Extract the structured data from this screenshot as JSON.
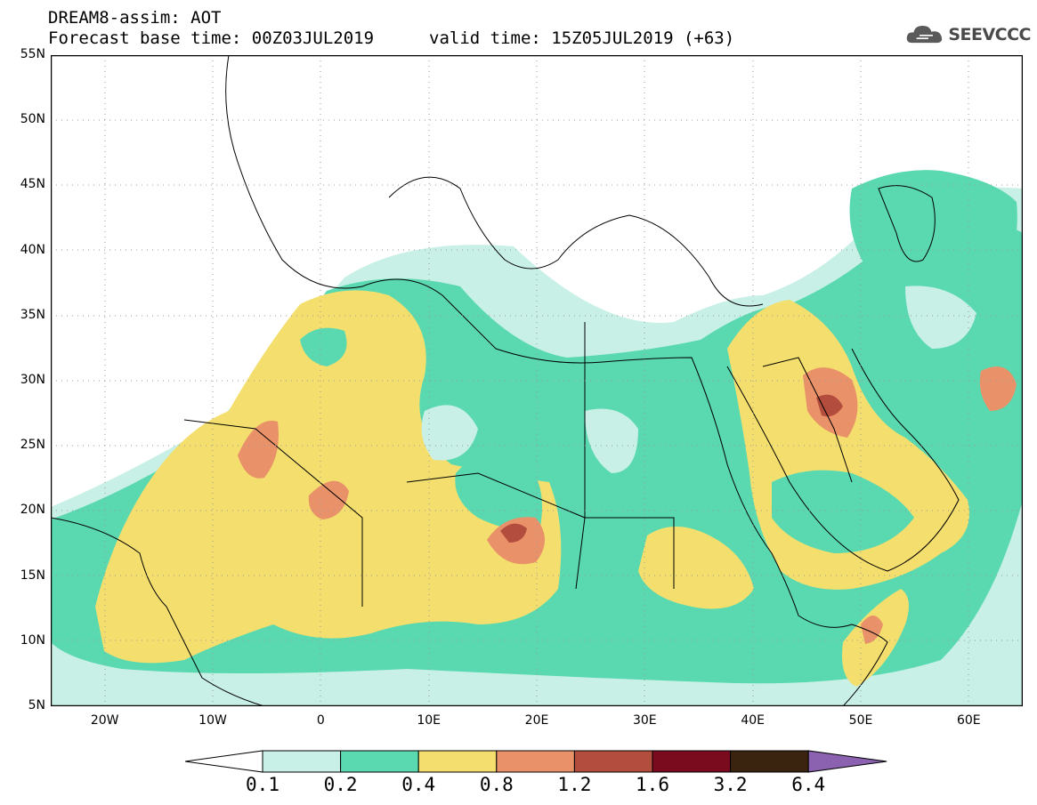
{
  "header": {
    "title_line1": "DREAM8-assim: AOT",
    "title_line2": "Forecast base time: 00Z03JUL2019",
    "valid_time": "valid time: 15Z05JUL2019 (+63)",
    "logo_text": "SEEVCCC",
    "logo_icon": "cloud-icon"
  },
  "map": {
    "lon_range": [
      -25,
      65
    ],
    "lat_range": [
      5,
      55
    ],
    "lat_labels": [
      "55N",
      "50N",
      "45N",
      "40N",
      "35N",
      "30N",
      "25N",
      "20N",
      "15N",
      "10N",
      "5N"
    ],
    "lon_labels": [
      "20W",
      "10W",
      "0",
      "10E",
      "20E",
      "30E",
      "40E",
      "50E",
      "60E"
    ]
  },
  "colorbar": {
    "levels": [
      "0.1",
      "0.2",
      "0.4",
      "0.8",
      "1.2",
      "1.6",
      "3.2",
      "6.4"
    ],
    "colors": [
      "#ffffff",
      "#c8f0e6",
      "#5ad9b0",
      "#f4df6e",
      "#e9926a",
      "#b34d3d",
      "#7a0a1e",
      "#3a2410",
      "#8a62b0"
    ]
  },
  "colors": {
    "aot_0_1_0_2": "#c8f0e6",
    "aot_0_2_0_4": "#5ad9b0",
    "aot_0_4_0_8": "#f4df6e",
    "aot_0_8_1_2": "#e9926a",
    "aot_1_2_1_6": "#b34d3d"
  }
}
